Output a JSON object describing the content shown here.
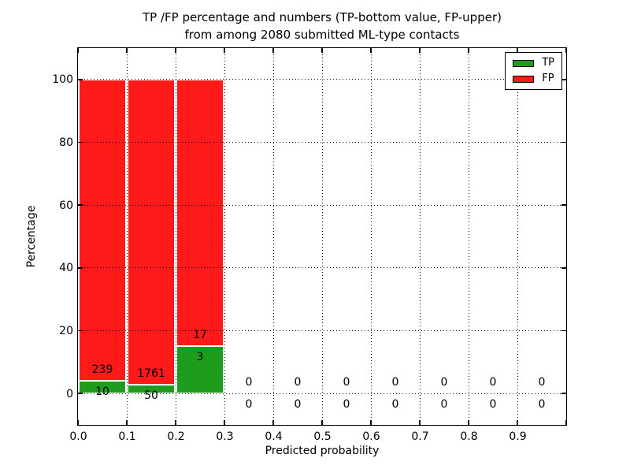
{
  "chart_data": {
    "type": "bar",
    "stacked": true,
    "title_lines": [
      "TP /FP percentage and numbers (TP-bottom value, FP-upper)",
      "from among 2080 submitted ML-type contacts"
    ],
    "xlabel": "Predicted probability",
    "ylabel": "Percentage",
    "xlim": [
      0.0,
      1.0
    ],
    "ylim": [
      -10,
      110
    ],
    "x_ticks": [
      "0.0",
      "0.1",
      "0.2",
      "0.3",
      "0.4",
      "0.5",
      "0.6",
      "0.7",
      "0.8",
      "0.9"
    ],
    "y_ticks": [
      0,
      20,
      40,
      60,
      80,
      100
    ],
    "bin_width": 0.1,
    "grid": "dotted",
    "legend_position": "upper-right",
    "total_submitted": 2080,
    "annotation_rule": "TP count below green top, FP count above green top",
    "legend": {
      "entries": [
        {
          "label": "TP",
          "color": "#1e9c1e"
        },
        {
          "label": "FP",
          "color": "#ff1a1a"
        }
      ]
    },
    "bins": [
      {
        "x_start": 0.0,
        "tp": 10,
        "fp": 239
      },
      {
        "x_start": 0.1,
        "tp": 50,
        "fp": 1761
      },
      {
        "x_start": 0.2,
        "tp": 3,
        "fp": 17
      },
      {
        "x_start": 0.3,
        "tp": 0,
        "fp": 0
      },
      {
        "x_start": 0.4,
        "tp": 0,
        "fp": 0
      },
      {
        "x_start": 0.5,
        "tp": 0,
        "fp": 0
      },
      {
        "x_start": 0.6,
        "tp": 0,
        "fp": 0
      },
      {
        "x_start": 0.7,
        "tp": 0,
        "fp": 0
      },
      {
        "x_start": 0.8,
        "tp": 0,
        "fp": 0
      },
      {
        "x_start": 0.9,
        "tp": 0,
        "fp": 0
      }
    ]
  },
  "colors": {
    "background": "#ffffff",
    "axes_border": "#000000",
    "grid": "#000000",
    "text": "#000000",
    "bar_edge": "#ffffff"
  }
}
